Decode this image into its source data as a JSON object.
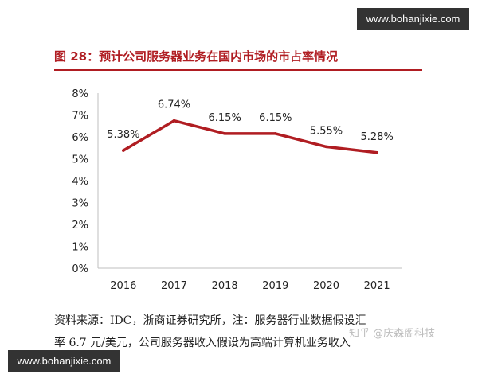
{
  "watermarks": {
    "top": "www.bohanjixie.com",
    "bottom": "www.bohanjixie.com",
    "zhihu": "知乎 @庆森阁科技"
  },
  "figure": {
    "title": "图 28：预计公司服务器业务在国内市场的市占率情况",
    "title_color": "#b01d22",
    "line_color": "#b01d22"
  },
  "chart_data": {
    "type": "line",
    "x": [
      "2016",
      "2017",
      "2018",
      "2019",
      "2020",
      "2021"
    ],
    "series": [
      {
        "values": [
          5.38,
          6.74,
          6.15,
          6.15,
          5.55,
          5.28
        ],
        "labels": [
          "5.38%",
          "6.74%",
          "6.15%",
          "6.15%",
          "5.55%",
          "5.28%"
        ]
      }
    ],
    "yticks": [
      "0%",
      "1%",
      "2%",
      "3%",
      "4%",
      "5%",
      "6%",
      "7%",
      "8%"
    ],
    "ylim": [
      0,
      8
    ],
    "grid": false,
    "legend": "none"
  },
  "footnote": {
    "line1": "资料来源：IDC，浙商证券研究所，注：服务器行业数据假设汇",
    "line2": "率 6.7 元/美元，公司服务器收入假设为高端计算机业务收入"
  }
}
